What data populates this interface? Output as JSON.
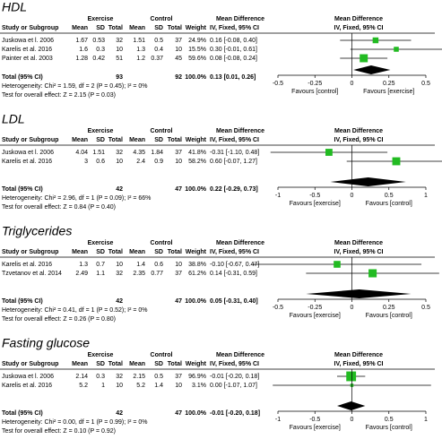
{
  "headers": {
    "group1": "Exercise",
    "group2": "Control",
    "md": "Mean Difference",
    "study": "Study or Subgroup",
    "mean": "Mean",
    "sd": "SD",
    "total": "Total",
    "weight": "Weight",
    "method": "IV, Fixed, 95% CI"
  },
  "chart_data": [
    {
      "type": "forest",
      "title": "HDL",
      "rows": [
        [
          "Juskowa et l. 2006",
          "1.67",
          "0.53",
          "32",
          "1.51",
          "0.5",
          "37",
          "24.9%",
          "0.16 [-0.08, 0.40]"
        ],
        [
          "Karelis et al. 2016",
          "1.6",
          "0.3",
          "10",
          "1.3",
          "0.4",
          "10",
          "15.5%",
          "0.30 [-0.01, 0.61]"
        ],
        [
          "Painter et al. 2003",
          "1.28",
          "0.42",
          "51",
          "1.2",
          "0.37",
          "45",
          "59.6%",
          "0.08 [-0.08, 0.24]"
        ]
      ],
      "effects": [
        {
          "md": 0.16,
          "lo": -0.08,
          "hi": 0.4,
          "weight": 24.9
        },
        {
          "md": 0.3,
          "lo": -0.01,
          "hi": 0.61,
          "weight": 15.5
        },
        {
          "md": 0.08,
          "lo": -0.08,
          "hi": 0.24,
          "weight": 59.6
        }
      ],
      "total_row": [
        "Total (95% CI)",
        "93",
        "92",
        "100.0%",
        "0.13 [0.01, 0.26]"
      ],
      "total": {
        "md": 0.13,
        "lo": 0.01,
        "hi": 0.26
      },
      "heterogeneity": "Heterogeneity: Chi² = 1.59, df = 2 (P = 0.45); I² = 0%",
      "overall": "Test for overall effect: Z = 2.15 (P = 0.03)",
      "xlim": [
        -0.5,
        0.5
      ],
      "xticks": [
        -0.5,
        -0.25,
        0,
        0.25,
        0.5
      ],
      "favours": [
        "Favours [control]",
        "Favours [exercise]"
      ],
      "color": "#22bb22"
    },
    {
      "type": "forest",
      "title": "LDL",
      "rows": [
        [
          "Juskowa et l. 2006",
          "4.04",
          "1.51",
          "32",
          "4.35",
          "1.84",
          "37",
          "41.8%",
          "-0.31 [-1.10, 0.48]"
        ],
        [
          "Karelis et al. 2016",
          "3",
          "0.6",
          "10",
          "2.4",
          "0.9",
          "10",
          "58.2%",
          "0.60 [-0.07, 1.27]"
        ]
      ],
      "effects": [
        {
          "md": -0.31,
          "lo": -1.1,
          "hi": 0.48,
          "weight": 41.8
        },
        {
          "md": 0.6,
          "lo": -0.07,
          "hi": 1.27,
          "weight": 58.2
        }
      ],
      "total_row": [
        "Total (95% CI)",
        "42",
        "47",
        "100.0%",
        "0.22 [-0.29, 0.73]"
      ],
      "total": {
        "md": 0.22,
        "lo": -0.29,
        "hi": 0.73
      },
      "heterogeneity": "Heterogeneity: Chi² = 2.96, df = 1 (P = 0.09); I² = 66%",
      "overall": "Test for overall effect: Z = 0.84 (P = 0.40)",
      "xlim": [
        -1,
        1
      ],
      "xticks": [
        -1,
        -0.5,
        0,
        0.5,
        1
      ],
      "favours": [
        "Favours [exercise]",
        "Favours [control]"
      ],
      "color": "#22bb22"
    },
    {
      "type": "forest",
      "title": "Triglycerides",
      "rows": [
        [
          "Karelis et al. 2016",
          "1.3",
          "0.7",
          "10",
          "1.4",
          "0.6",
          "10",
          "38.8%",
          "-0.10 [-0.67, 0.47]"
        ],
        [
          "Tzvetanov et al. 2014",
          "2.49",
          "1.1",
          "32",
          "2.35",
          "0.77",
          "37",
          "61.2%",
          "0.14 [-0.31, 0.59]"
        ]
      ],
      "effects": [
        {
          "md": -0.1,
          "lo": -0.67,
          "hi": 0.47,
          "weight": 38.8
        },
        {
          "md": 0.14,
          "lo": -0.31,
          "hi": 0.59,
          "weight": 61.2
        }
      ],
      "total_row": [
        "Total (95% CI)",
        "42",
        "47",
        "100.0%",
        "0.05 [-0.31, 0.40]"
      ],
      "total": {
        "md": 0.05,
        "lo": -0.31,
        "hi": 0.4
      },
      "heterogeneity": "Heterogeneity: Chi² = 0.41, df = 1 (P = 0.52); I² = 0%",
      "overall": "Test for overall effect: Z = 0.26 (P = 0.80)",
      "xlim": [
        -0.5,
        0.5
      ],
      "xticks": [
        -0.5,
        -0.25,
        0,
        0.25,
        0.5
      ],
      "favours": [
        "Favours [exercise]",
        "Favours [control]"
      ],
      "color": "#22bb22"
    },
    {
      "type": "forest",
      "title": "Fasting glucose",
      "rows": [
        [
          "Juskowa et l. 2006",
          "2.14",
          "0.3",
          "32",
          "2.15",
          "0.5",
          "37",
          "96.9%",
          "-0.01 [-0.20, 0.18]"
        ],
        [
          "Karelis et al. 2016",
          "5.2",
          "1",
          "10",
          "5.2",
          "1.4",
          "10",
          "3.1%",
          "0.00 [-1.07, 1.07]"
        ]
      ],
      "effects": [
        {
          "md": -0.01,
          "lo": -0.2,
          "hi": 0.18,
          "weight": 96.9
        },
        {
          "md": 0.0,
          "lo": -1.07,
          "hi": 1.07,
          "weight": 3.1
        }
      ],
      "total_row": [
        "Total (95% CI)",
        "42",
        "47",
        "100.0%",
        "-0.01 [-0.20, 0.18]"
      ],
      "total": {
        "md": -0.01,
        "lo": -0.2,
        "hi": 0.18
      },
      "heterogeneity": "Heterogeneity: Chi² = 0.00, df = 1 (P = 0.99); I² = 0%",
      "overall": "Test for overall effect: Z = 0.10 (P = 0.92)",
      "xlim": [
        -1,
        1
      ],
      "xticks": [
        -1,
        -0.5,
        0,
        0.5,
        1
      ],
      "favours": [
        "Favours [exercise]",
        "Favours [control]"
      ],
      "color": "#22bb22"
    }
  ]
}
